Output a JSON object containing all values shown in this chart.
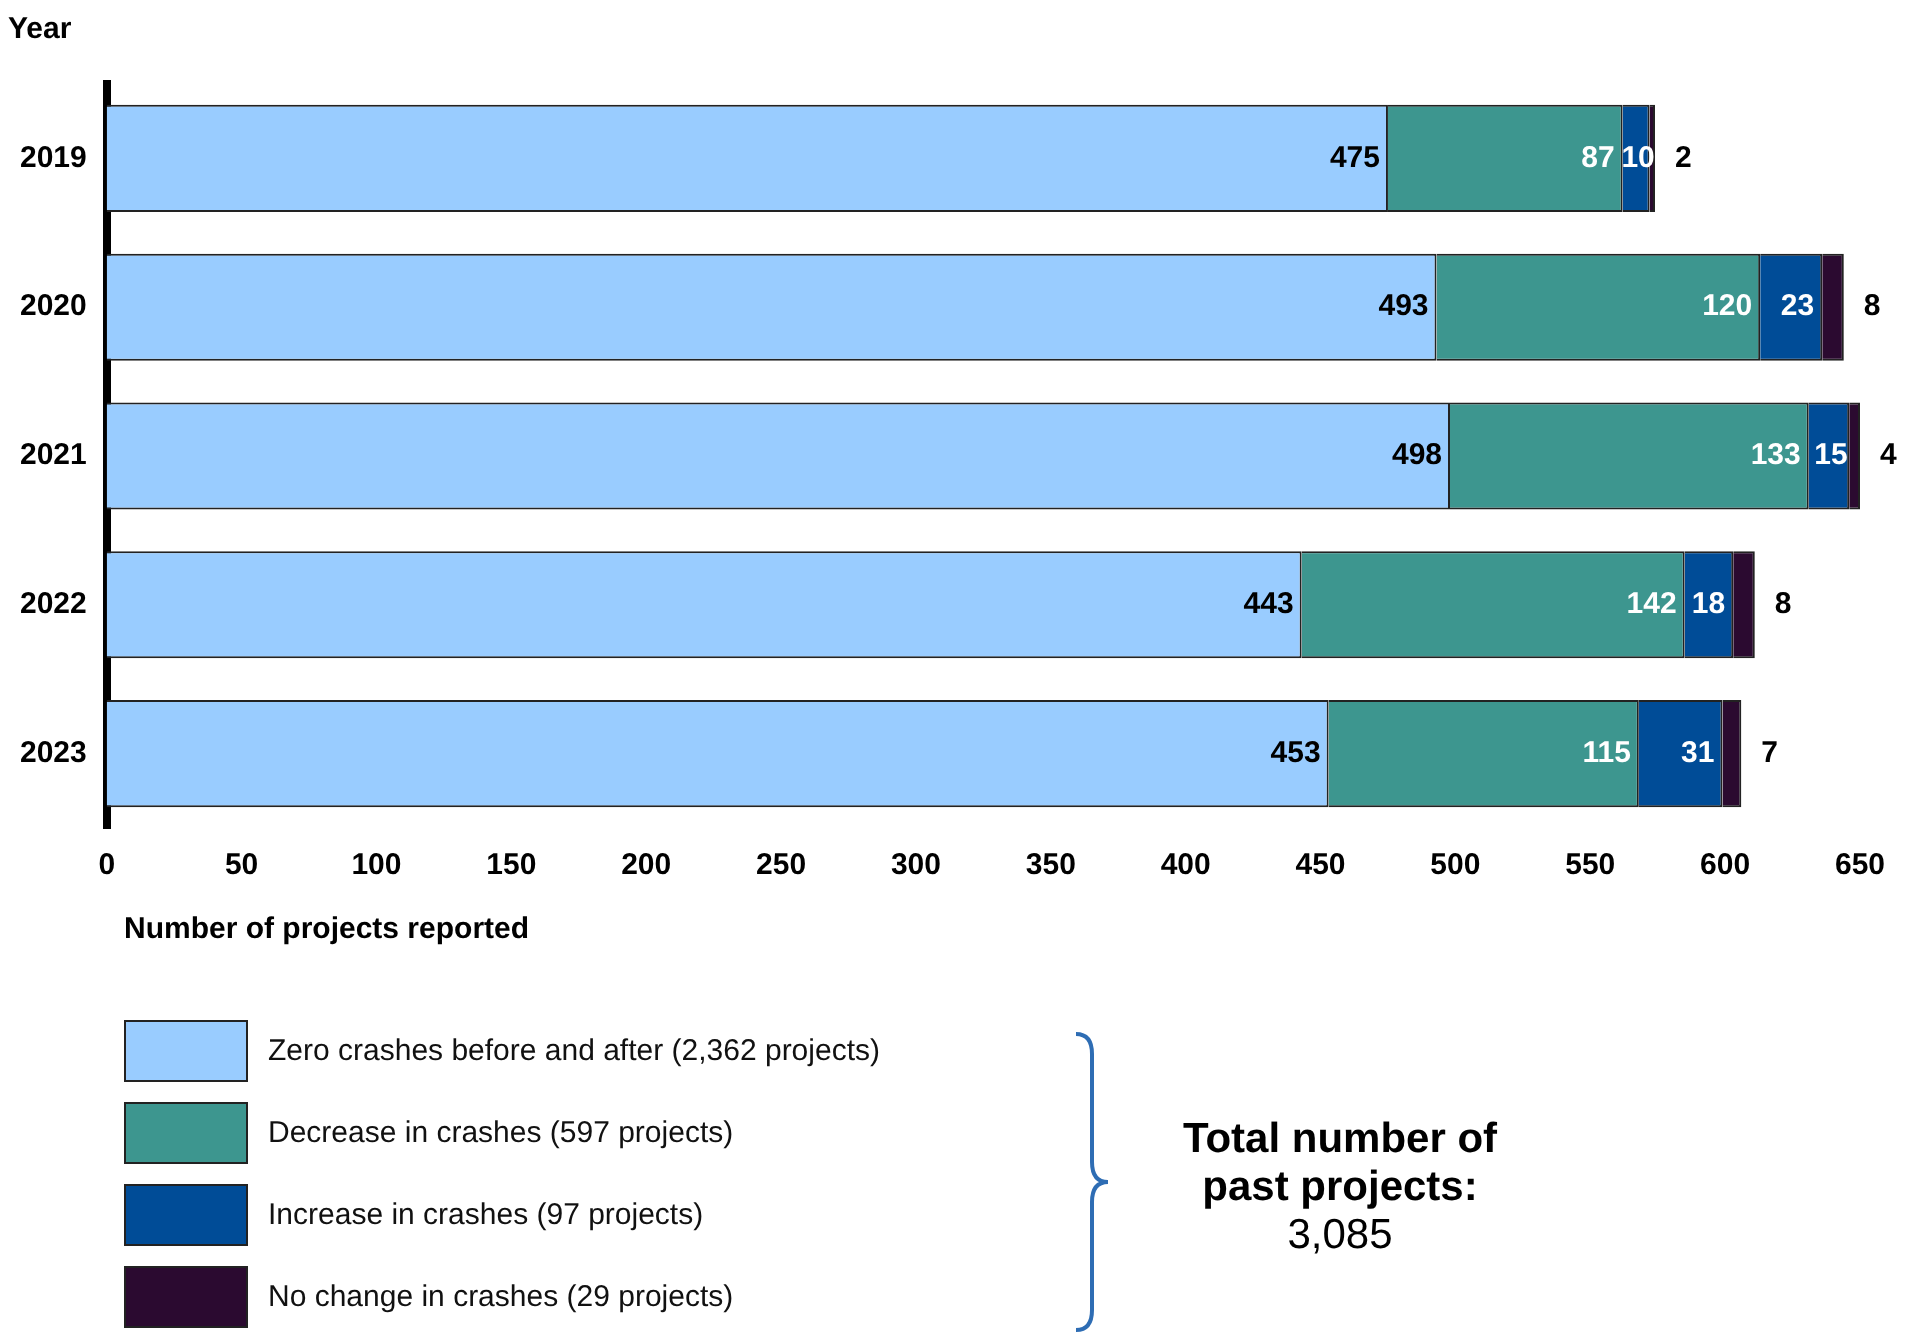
{
  "chart_data": {
    "type": "bar",
    "orientation": "horizontal",
    "stacked": true,
    "data_labels": true,
    "legend": "bottom",
    "grid": false,
    "xlabel": "Number of projects reported",
    "ylabel": "Year",
    "categories": [
      "2019",
      "2020",
      "2021",
      "2022",
      "2023"
    ],
    "xlim": [
      0,
      650
    ],
    "xticks": [
      0,
      50,
      100,
      150,
      200,
      250,
      300,
      350,
      400,
      450,
      500,
      550,
      600,
      650
    ],
    "series": [
      {
        "name": "Zero crashes before and after (2,362 projects)",
        "color": "#99ccff",
        "values": [
          475,
          493,
          498,
          443,
          453
        ]
      },
      {
        "name": "Decrease in crashes (597 projects)",
        "color": "#3d968f",
        "values": [
          87,
          120,
          133,
          142,
          115
        ]
      },
      {
        "name": "Increase in crashes (97 projects)",
        "color": "#004c97",
        "values": [
          10,
          23,
          15,
          18,
          31
        ]
      },
      {
        "name": "No change in crashes (29 projects)",
        "color": "#2b0a30",
        "values": [
          2,
          8,
          4,
          8,
          7
        ]
      }
    ],
    "annotations": [
      "Total number of past projects:",
      "3,085"
    ]
  }
}
